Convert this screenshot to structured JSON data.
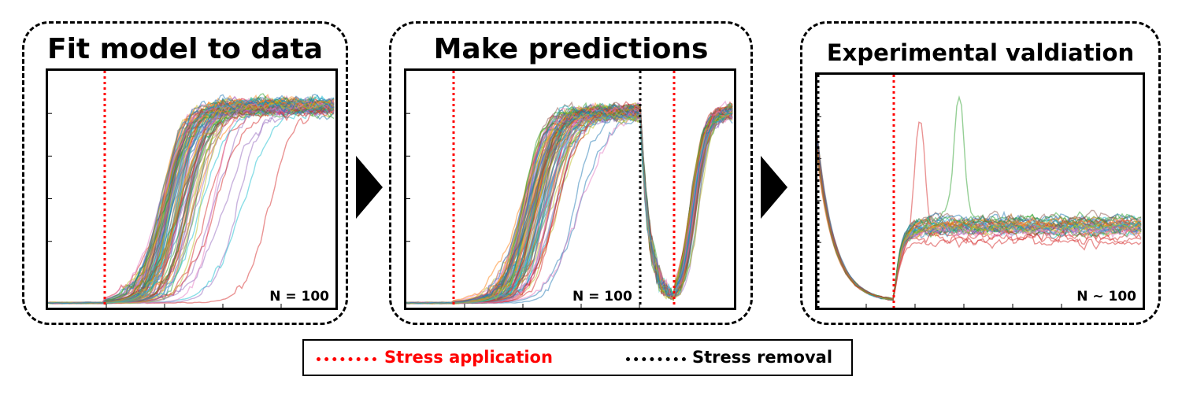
{
  "panels": [
    {
      "title": "Fit model to data",
      "n_label": "N = 100"
    },
    {
      "title": "Make predictions",
      "n_label": "N = 100"
    },
    {
      "title": "Experimental valdiation",
      "n_label": "N ~ 100"
    }
  ],
  "legend": {
    "stress_application": "Stress application",
    "stress_removal": "Stress removal"
  },
  "colors": {
    "stress_application": "#ff0000",
    "stress_removal": "#000000",
    "traces": [
      "#1f77b4",
      "#ff7f0e",
      "#2ca02c",
      "#d62728",
      "#9467bd",
      "#8c564b",
      "#e377c2",
      "#17becf",
      "#bcbd22"
    ]
  },
  "icons": [
    "right-arrow-icon",
    "right-arrow-icon"
  ]
}
